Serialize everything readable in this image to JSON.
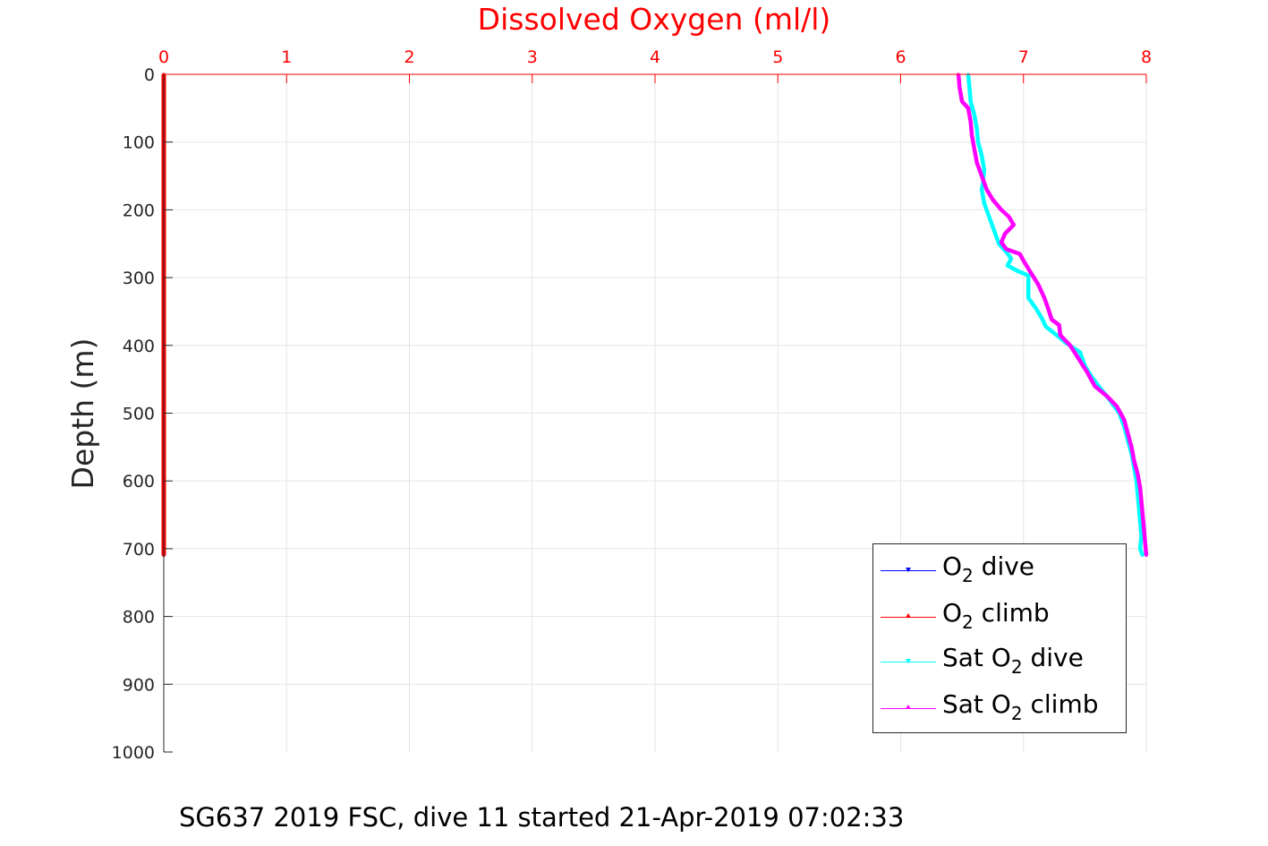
{
  "chart_data": {
    "type": "line",
    "title": "Dissolved Oxygen (ml/l)",
    "xlabel": "",
    "ylabel": "Depth (m)",
    "xlim": [
      0,
      8
    ],
    "ylim": [
      0,
      1000
    ],
    "y_reversed": true,
    "x_axis_position": "top",
    "grid": true,
    "xticks": [
      "0",
      "1",
      "2",
      "3",
      "4",
      "5",
      "6",
      "7",
      "8"
    ],
    "yticks": [
      "0",
      "100",
      "200",
      "300",
      "400",
      "500",
      "600",
      "700",
      "800",
      "900",
      "1000"
    ],
    "legend_position": "bottom-right",
    "series": [
      {
        "name": "O2 dive",
        "color": "#0000ff",
        "marker": "triangle-down",
        "points": [
          [
            0,
            0
          ],
          [
            0,
            710
          ]
        ]
      },
      {
        "name": "O2 climb",
        "color": "#ff0000",
        "marker": "triangle-up",
        "points": [
          [
            0,
            0
          ],
          [
            0,
            710
          ]
        ]
      },
      {
        "name": "Sat O2 dive",
        "color": "#00ffff",
        "marker": "triangle-down",
        "points": [
          [
            6.55,
            0
          ],
          [
            6.56,
            20
          ],
          [
            6.57,
            40
          ],
          [
            6.6,
            60
          ],
          [
            6.62,
            80
          ],
          [
            6.63,
            100
          ],
          [
            6.66,
            120
          ],
          [
            6.68,
            140
          ],
          [
            6.67,
            160
          ],
          [
            6.66,
            170
          ],
          [
            6.68,
            190
          ],
          [
            6.72,
            210
          ],
          [
            6.76,
            230
          ],
          [
            6.8,
            250
          ],
          [
            6.86,
            262
          ],
          [
            6.9,
            272
          ],
          [
            6.87,
            282
          ],
          [
            6.95,
            290
          ],
          [
            7.04,
            297
          ],
          [
            7.04,
            330
          ],
          [
            7.1,
            345
          ],
          [
            7.15,
            360
          ],
          [
            7.18,
            372
          ],
          [
            7.27,
            385
          ],
          [
            7.35,
            397
          ],
          [
            7.46,
            410
          ],
          [
            7.5,
            430
          ],
          [
            7.55,
            445
          ],
          [
            7.62,
            462
          ],
          [
            7.7,
            480
          ],
          [
            7.78,
            500
          ],
          [
            7.82,
            520
          ],
          [
            7.85,
            540
          ],
          [
            7.88,
            560
          ],
          [
            7.9,
            580
          ],
          [
            7.92,
            600
          ],
          [
            7.93,
            620
          ],
          [
            7.94,
            640
          ],
          [
            7.95,
            660
          ],
          [
            7.96,
            680
          ],
          [
            7.95,
            700
          ],
          [
            7.97,
            710
          ]
        ]
      },
      {
        "name": "Sat O2 climb",
        "color": "#ff00ff",
        "marker": "triangle-up",
        "points": [
          [
            6.47,
            0
          ],
          [
            6.48,
            20
          ],
          [
            6.5,
            40
          ],
          [
            6.55,
            50
          ],
          [
            6.57,
            70
          ],
          [
            6.58,
            90
          ],
          [
            6.6,
            110
          ],
          [
            6.62,
            130
          ],
          [
            6.66,
            150
          ],
          [
            6.7,
            170
          ],
          [
            6.75,
            185
          ],
          [
            6.82,
            200
          ],
          [
            6.88,
            210
          ],
          [
            6.92,
            222
          ],
          [
            6.85,
            235
          ],
          [
            6.82,
            248
          ],
          [
            6.86,
            258
          ],
          [
            6.97,
            265
          ],
          [
            7.0,
            275
          ],
          [
            7.05,
            290
          ],
          [
            7.12,
            310
          ],
          [
            7.17,
            330
          ],
          [
            7.2,
            345
          ],
          [
            7.23,
            362
          ],
          [
            7.29,
            370
          ],
          [
            7.3,
            385
          ],
          [
            7.38,
            400
          ],
          [
            7.45,
            420
          ],
          [
            7.52,
            440
          ],
          [
            7.58,
            460
          ],
          [
            7.68,
            475
          ],
          [
            7.76,
            490
          ],
          [
            7.82,
            510
          ],
          [
            7.85,
            530
          ],
          [
            7.88,
            550
          ],
          [
            7.9,
            570
          ],
          [
            7.93,
            590
          ],
          [
            7.95,
            610
          ],
          [
            7.96,
            630
          ],
          [
            7.97,
            650
          ],
          [
            7.98,
            670
          ],
          [
            7.99,
            690
          ],
          [
            8.0,
            710
          ]
        ]
      }
    ]
  },
  "legend": {
    "entries": [
      {
        "prefix": "O",
        "sub": "2",
        "suffix": " dive",
        "color": "#0000ff",
        "marker": "down"
      },
      {
        "prefix": "O",
        "sub": "2",
        "suffix": " climb",
        "color": "#ff0000",
        "marker": "up"
      },
      {
        "prefix": "Sat O",
        "sub": "2",
        "suffix": " dive",
        "color": "#00ffff",
        "marker": "down"
      },
      {
        "prefix": "Sat O",
        "sub": "2",
        "suffix": " climb",
        "color": "#ff00ff",
        "marker": "up"
      }
    ]
  },
  "caption": "SG637 2019 FSC, dive 11 started 21-Apr-2019 07:02:33",
  "colors": {
    "x_axis": "#ff0000",
    "y_axis": "#262626",
    "grid": "#e6e6e6"
  }
}
